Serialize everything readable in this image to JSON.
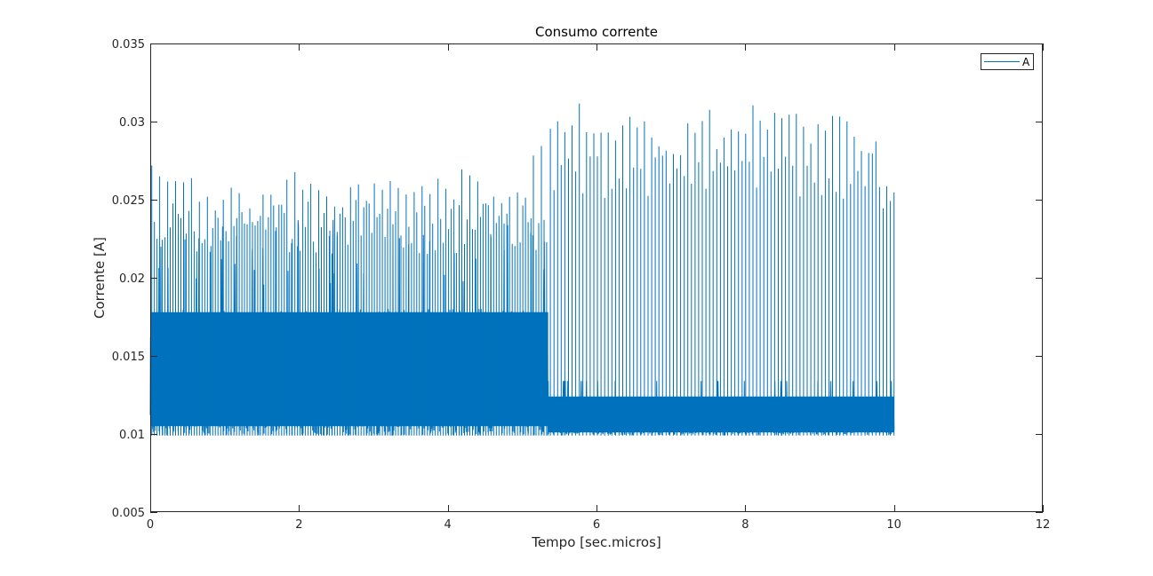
{
  "chart_data": {
    "type": "line",
    "title": "Consumo corrente",
    "xlabel": "Tempo [sec.micros]",
    "ylabel": "Corrente [A]",
    "xlim": [
      0,
      12
    ],
    "ylim": [
      0.005,
      0.035
    ],
    "xticks": [
      0,
      2,
      4,
      6,
      8,
      10,
      12
    ],
    "xtick_labels": [
      "0",
      "2",
      "4",
      "6",
      "8",
      "10",
      "12"
    ],
    "yticks": [
      0.005,
      0.01,
      0.015,
      0.02,
      0.025,
      0.03,
      0.035
    ],
    "ytick_labels": [
      "0.005",
      "0.01",
      "0.015",
      "0.02",
      "0.025",
      "0.03",
      "0.035"
    ],
    "grid": false,
    "legend_position": "top-right",
    "series": [
      {
        "name": "A",
        "color": "#0072bd",
        "x_range": [
          0,
          10
        ],
        "baseline_min": 0.0099,
        "phase_1": {
          "x_range": [
            0,
            5.35
          ],
          "dense_band": [
            0.0099,
            0.018
          ],
          "peak_values": [
            0.0272,
            0.0265,
            0.0255,
            0.0258,
            0.0243,
            0.0255,
            0.0268,
            0.0262,
            0.0255,
            0.026,
            0.0268,
            0.0258,
            0.0265,
            0.026,
            0.027,
            0.0255,
            0.0262,
            0.0286
          ],
          "lower_spikes": [
            [
              0.66,
              0.0145
            ],
            [
              3.2,
              0.0145
            ],
            [
              4.42,
              0.0138
            ],
            [
              4.45,
              0.0148
            ]
          ]
        },
        "phase_2": {
          "x_range": [
            5.35,
            10.0
          ],
          "dense_band": [
            0.0099,
            0.0124
          ],
          "secondary_level": 0.0134,
          "peak_values": [
            0.0303,
            0.0312,
            0.0295,
            0.0302,
            0.0309,
            0.0305,
            0.0297,
            0.0291,
            0.0305,
            0.031,
            0.0295,
            0.0307,
            0.0311,
            0.0309,
            0.0305,
            0.0298,
            0.0302,
            0.0306,
            0.0295,
            0.0288,
            0.0253
          ]
        }
      }
    ]
  }
}
